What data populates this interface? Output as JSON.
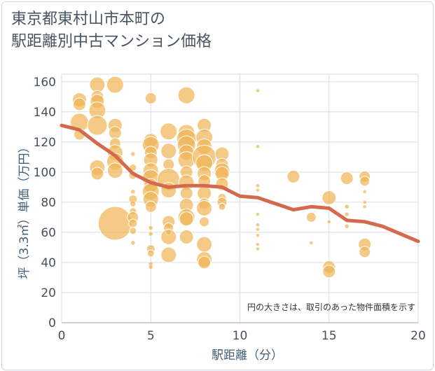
{
  "title_line1": "東京都東村山市本町の",
  "title_line2": "駅距離別中古マンション価格",
  "chart_data": {
    "type": "scatter",
    "xlabel": "駅距離（分）",
    "ylabel": "坪（3.3㎡）単価（万円）",
    "note": "円の大きさは、取引のあった物件面積を示す",
    "xlim": [
      0,
      20
    ],
    "ylim": [
      0,
      165
    ],
    "xticks": [
      "0",
      "5",
      "10",
      "15",
      "20"
    ],
    "yticks": [
      "0",
      "20",
      "40",
      "60",
      "80",
      "100",
      "120",
      "140",
      "160"
    ],
    "grid": true,
    "colors": {
      "bubble": "#f0b557",
      "trend": "#d4694f",
      "grid": "#d5dde6"
    },
    "series": [
      {
        "kind": "bubble",
        "points": [
          {
            "x": 1,
            "y": 148,
            "s": 10
          },
          {
            "x": 1,
            "y": 145,
            "s": 9
          },
          {
            "x": 1,
            "y": 133,
            "s": 13
          },
          {
            "x": 1,
            "y": 125,
            "s": 8
          },
          {
            "x": 2,
            "y": 158,
            "s": 11
          },
          {
            "x": 2,
            "y": 150,
            "s": 9
          },
          {
            "x": 2,
            "y": 147,
            "s": 10
          },
          {
            "x": 2,
            "y": 141,
            "s": 12
          },
          {
            "x": 2,
            "y": 131,
            "s": 14
          },
          {
            "x": 2,
            "y": 103,
            "s": 11
          },
          {
            "x": 2,
            "y": 99,
            "s": 9
          },
          {
            "x": 3,
            "y": 158,
            "s": 12
          },
          {
            "x": 3,
            "y": 131,
            "s": 10
          },
          {
            "x": 3,
            "y": 126,
            "s": 9
          },
          {
            "x": 3,
            "y": 119,
            "s": 8
          },
          {
            "x": 3,
            "y": 113,
            "s": 11
          },
          {
            "x": 3,
            "y": 107,
            "s": 12
          },
          {
            "x": 3,
            "y": 101,
            "s": 11
          },
          {
            "x": 3,
            "y": 66,
            "s": 24
          },
          {
            "x": 4,
            "y": 112,
            "s": 3
          },
          {
            "x": 4,
            "y": 103,
            "s": 5
          },
          {
            "x": 4,
            "y": 98,
            "s": 6
          },
          {
            "x": 4,
            "y": 87,
            "s": 3
          },
          {
            "x": 4,
            "y": 82,
            "s": 6
          },
          {
            "x": 4,
            "y": 79,
            "s": 4
          },
          {
            "x": 4,
            "y": 74,
            "s": 5
          },
          {
            "x": 4,
            "y": 70,
            "s": 8
          },
          {
            "x": 4,
            "y": 66,
            "s": 6
          },
          {
            "x": 4,
            "y": 61,
            "s": 5
          },
          {
            "x": 4,
            "y": 53,
            "s": 3
          },
          {
            "x": 5,
            "y": 149,
            "s": 8
          },
          {
            "x": 5,
            "y": 121,
            "s": 10
          },
          {
            "x": 5,
            "y": 118,
            "s": 12
          },
          {
            "x": 5,
            "y": 113,
            "s": 9
          },
          {
            "x": 5,
            "y": 108,
            "s": 10
          },
          {
            "x": 5,
            "y": 101,
            "s": 11
          },
          {
            "x": 5,
            "y": 96,
            "s": 12
          },
          {
            "x": 5,
            "y": 91,
            "s": 10
          },
          {
            "x": 5,
            "y": 87,
            "s": 12
          },
          {
            "x": 5,
            "y": 82,
            "s": 11
          },
          {
            "x": 5,
            "y": 77,
            "s": 8
          },
          {
            "x": 5,
            "y": 63,
            "s": 3
          },
          {
            "x": 5,
            "y": 59,
            "s": 3
          },
          {
            "x": 5,
            "y": 49,
            "s": 6
          },
          {
            "x": 5,
            "y": 46,
            "s": 5
          },
          {
            "x": 5,
            "y": 39,
            "s": 3
          },
          {
            "x": 5,
            "y": 37,
            "s": 3
          },
          {
            "x": 6,
            "y": 127,
            "s": 12
          },
          {
            "x": 6,
            "y": 114,
            "s": 11
          },
          {
            "x": 6,
            "y": 105,
            "s": 8
          },
          {
            "x": 6,
            "y": 95,
            "s": 16
          },
          {
            "x": 6,
            "y": 88,
            "s": 11
          },
          {
            "x": 6,
            "y": 67,
            "s": 9
          },
          {
            "x": 6,
            "y": 63,
            "s": 7
          },
          {
            "x": 6,
            "y": 57,
            "s": 11
          },
          {
            "x": 6,
            "y": 45,
            "s": 11
          },
          {
            "x": 6,
            "y": 60,
            "s": 4
          },
          {
            "x": 7,
            "y": 151,
            "s": 12
          },
          {
            "x": 7,
            "y": 126,
            "s": 12
          },
          {
            "x": 7,
            "y": 122,
            "s": 14
          },
          {
            "x": 7,
            "y": 118,
            "s": 13
          },
          {
            "x": 7,
            "y": 113,
            "s": 11
          },
          {
            "x": 7,
            "y": 108,
            "s": 12
          },
          {
            "x": 7,
            "y": 100,
            "s": 9
          },
          {
            "x": 7,
            "y": 93,
            "s": 11
          },
          {
            "x": 7,
            "y": 86,
            "s": 9
          },
          {
            "x": 7,
            "y": 78,
            "s": 10
          },
          {
            "x": 7,
            "y": 70,
            "s": 12
          },
          {
            "x": 7,
            "y": 69,
            "s": 10
          },
          {
            "x": 7,
            "y": 57,
            "s": 10
          },
          {
            "x": 8,
            "y": 131,
            "s": 10
          },
          {
            "x": 8,
            "y": 123,
            "s": 12
          },
          {
            "x": 8,
            "y": 117,
            "s": 11
          },
          {
            "x": 8,
            "y": 110,
            "s": 17
          },
          {
            "x": 8,
            "y": 106,
            "s": 12
          },
          {
            "x": 8,
            "y": 99,
            "s": 10
          },
          {
            "x": 8,
            "y": 94,
            "s": 9
          },
          {
            "x": 8,
            "y": 86,
            "s": 10
          },
          {
            "x": 8,
            "y": 79,
            "s": 8
          },
          {
            "x": 8,
            "y": 76,
            "s": 11
          },
          {
            "x": 8,
            "y": 67,
            "s": 7
          },
          {
            "x": 8,
            "y": 52,
            "s": 11
          },
          {
            "x": 8,
            "y": 42,
            "s": 11
          },
          {
            "x": 8,
            "y": 40,
            "s": 9
          },
          {
            "x": 9,
            "y": 112,
            "s": 10
          },
          {
            "x": 9,
            "y": 105,
            "s": 9
          },
          {
            "x": 9,
            "y": 101,
            "s": 11
          },
          {
            "x": 9,
            "y": 99,
            "s": 10
          },
          {
            "x": 9,
            "y": 92,
            "s": 9
          },
          {
            "x": 9,
            "y": 83,
            "s": 6
          },
          {
            "x": 9,
            "y": 80,
            "s": 7
          },
          {
            "x": 9,
            "y": 77,
            "s": 5
          },
          {
            "x": 11,
            "y": 154,
            "s": 2.5
          },
          {
            "x": 11,
            "y": 117,
            "s": 2.5
          },
          {
            "x": 11,
            "y": 91,
            "s": 2.5
          },
          {
            "x": 11,
            "y": 88,
            "s": 2.5
          },
          {
            "x": 11,
            "y": 72,
            "s": 2.5
          },
          {
            "x": 11,
            "y": 65,
            "s": 2.5
          },
          {
            "x": 11,
            "y": 62,
            "s": 2.5
          },
          {
            "x": 11,
            "y": 58,
            "s": 2.5
          },
          {
            "x": 11,
            "y": 52,
            "s": 2.5
          },
          {
            "x": 11,
            "y": 49,
            "s": 2.5
          },
          {
            "x": 13,
            "y": 97,
            "s": 9
          },
          {
            "x": 14,
            "y": 70,
            "s": 7
          },
          {
            "x": 14,
            "y": 53,
            "s": 2.5
          },
          {
            "x": 15,
            "y": 83,
            "s": 10
          },
          {
            "x": 15,
            "y": 37,
            "s": 9
          },
          {
            "x": 15,
            "y": 34,
            "s": 9
          },
          {
            "x": 15,
            "y": 67,
            "s": 2.5
          },
          {
            "x": 16,
            "y": 96,
            "s": 9
          },
          {
            "x": 16,
            "y": 77,
            "s": 3
          },
          {
            "x": 16,
            "y": 72,
            "s": 3
          },
          {
            "x": 16,
            "y": 68,
            "s": 3
          },
          {
            "x": 16,
            "y": 64,
            "s": 3
          },
          {
            "x": 17,
            "y": 97,
            "s": 8
          },
          {
            "x": 17,
            "y": 94,
            "s": 7
          },
          {
            "x": 17,
            "y": 87,
            "s": 2.5
          },
          {
            "x": 17,
            "y": 80,
            "s": 2.5
          },
          {
            "x": 17,
            "y": 77,
            "s": 2.5
          },
          {
            "x": 17,
            "y": 52,
            "s": 9
          },
          {
            "x": 17,
            "y": 47,
            "s": 8
          }
        ]
      },
      {
        "kind": "line",
        "x": [
          0,
          1,
          2,
          3,
          4,
          5,
          6,
          7,
          8,
          9,
          10,
          11,
          12,
          13,
          14,
          15,
          16,
          17,
          18,
          19,
          20
        ],
        "y": [
          131,
          128,
          119,
          111,
          99,
          93,
          90,
          91,
          91,
          90,
          84,
          83,
          79,
          75,
          77,
          76,
          68,
          67,
          64,
          59,
          54
        ]
      }
    ]
  }
}
